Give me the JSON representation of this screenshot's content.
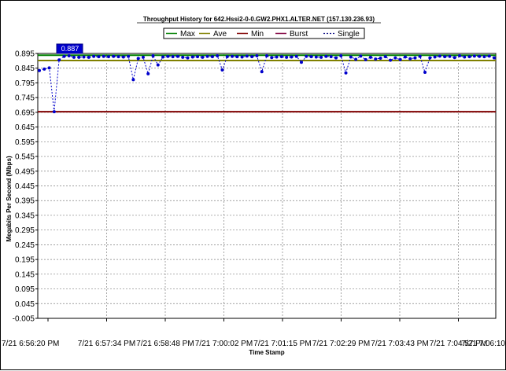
{
  "chart_data": {
    "type": "line",
    "title": "Throughput History for 642.Hssi2-0-0.GW2.PHX1.ALTER.NET (157.130.236.93)",
    "xlabel": "Time Stamp",
    "ylabel": "Megabits Per Second (Mbps)",
    "ylim": [
      -0.005,
      0.895
    ],
    "yticks": [
      "0.895",
      "0.845",
      "0.795",
      "0.745",
      "0.695",
      "0.645",
      "0.595",
      "0.545",
      "0.495",
      "0.445",
      "0.395",
      "0.345",
      "0.295",
      "0.245",
      "0.195",
      "0.145",
      "0.095",
      "0.045",
      "-0.005"
    ],
    "xticks": [
      "7/21 6:56:20 PM",
      "7/21 6:57:34 PM",
      "7/21 6:58:48 PM",
      "7/21 7:00:02 PM",
      "7/21 7:01:15 PM",
      "7/21 7:02:29 PM",
      "7/21 7:03:43 PM",
      "7/21 7:04:57 PM",
      "7/21 7:06:10"
    ],
    "grid": true,
    "legend_position": "top-center",
    "tooltip_value": "0.887",
    "legend": [
      {
        "name": "Max",
        "color": "#008000",
        "style": "solid"
      },
      {
        "name": "Ave",
        "color": "#808000",
        "style": "solid"
      },
      {
        "name": "Min",
        "color": "#800000",
        "style": "solid"
      },
      {
        "name": "Burst",
        "color": "#800040",
        "style": "solid"
      },
      {
        "name": "Single",
        "color": "#000080",
        "style": "dotted"
      }
    ],
    "reference_lines": [
      {
        "name": "Max",
        "value": 0.889,
        "color": "#008000"
      },
      {
        "name": "Ave",
        "value": 0.871,
        "color": "#808000"
      },
      {
        "name": "Min",
        "value": 0.697,
        "color": "#800000"
      }
    ],
    "series": [
      {
        "name": "Single",
        "color": "#0000cc",
        "x_index": [
          0,
          1,
          2,
          3,
          4,
          5,
          6,
          7,
          8,
          9,
          10,
          11,
          12,
          13,
          14,
          15,
          16,
          17,
          18,
          19,
          20,
          21,
          22,
          23,
          24,
          25,
          26,
          27,
          28,
          29,
          30,
          31,
          32,
          33,
          34,
          35,
          36,
          37,
          38,
          39,
          40,
          41,
          42,
          43,
          44,
          45,
          46,
          47,
          48,
          49,
          50,
          51,
          52,
          53,
          54,
          55,
          56,
          57,
          58,
          59,
          60,
          61,
          62,
          63,
          64,
          65,
          66,
          67,
          68,
          69,
          70,
          71,
          72,
          73,
          74,
          75,
          76,
          77,
          78,
          79,
          80,
          81,
          82,
          83,
          84,
          85,
          86,
          87,
          88,
          89,
          90,
          91,
          92
        ],
        "values": [
          0.837,
          0.842,
          0.846,
          0.697,
          0.873,
          0.885,
          0.887,
          0.882,
          0.882,
          0.883,
          0.882,
          0.885,
          0.884,
          0.885,
          0.884,
          0.885,
          0.884,
          0.883,
          0.885,
          0.806,
          0.878,
          0.882,
          0.826,
          0.887,
          0.856,
          0.883,
          0.885,
          0.884,
          0.885,
          0.882,
          0.88,
          0.883,
          0.884,
          0.882,
          0.885,
          0.884,
          0.887,
          0.839,
          0.884,
          0.885,
          0.884,
          0.883,
          0.886,
          0.884,
          0.887,
          0.833,
          0.887,
          0.881,
          0.883,
          0.884,
          0.882,
          0.883,
          0.885,
          0.865,
          0.885,
          0.884,
          0.883,
          0.882,
          0.885,
          0.884,
          0.88,
          0.887,
          0.829,
          0.883,
          0.875,
          0.886,
          0.874,
          0.882,
          0.876,
          0.879,
          0.884,
          0.872,
          0.88,
          0.874,
          0.883,
          0.877,
          0.88,
          0.885,
          0.831,
          0.88,
          0.883,
          0.886,
          0.884,
          0.885,
          0.881,
          0.887,
          0.883,
          0.884,
          0.886,
          0.885,
          0.884,
          0.886,
          0.88
        ]
      }
    ]
  }
}
